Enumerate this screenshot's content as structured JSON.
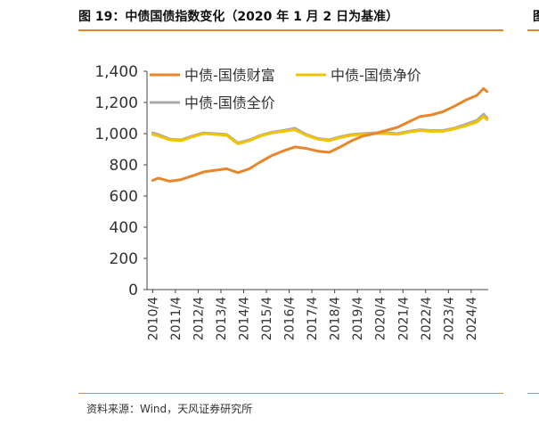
{
  "figure": {
    "title": "图 19：中债国债指数变化（2020 年 1 月 2 日为基准）",
    "source": "资料来源：Wind，天风证券研究所",
    "right_fragment": "图",
    "accent_color": "#E8862C"
  },
  "chart_data": {
    "type": "line",
    "title": "",
    "xlabel": "",
    "ylabel": "",
    "ylim": [
      0,
      1400
    ],
    "yticks": [
      "0",
      "200",
      "400",
      "600",
      "800",
      "1,000",
      "1,200",
      "1,400"
    ],
    "xticks": [
      "2010/4",
      "2011/4",
      "2012/4",
      "2013/4",
      "2014/4",
      "2015/4",
      "2016/4",
      "2017/4",
      "2018/4",
      "2019/4",
      "2020/4",
      "2021/4",
      "2022/4",
      "2023/4",
      "2024/4"
    ],
    "x": [
      2010.25,
      2010.5,
      2011.0,
      2011.5,
      2012.0,
      2012.5,
      2013.0,
      2013.5,
      2014.0,
      2014.5,
      2015.0,
      2015.5,
      2016.0,
      2016.5,
      2017.0,
      2017.5,
      2018.0,
      2018.5,
      2019.0,
      2019.5,
      2020.0,
      2020.5,
      2021.0,
      2021.5,
      2022.0,
      2022.5,
      2023.0,
      2023.5,
      2024.0,
      2024.5,
      2024.8,
      2024.95
    ],
    "grid": false,
    "legend_position": "top",
    "series": [
      {
        "name": "中债-国债财富",
        "color": "#E8862C",
        "values": [
          700,
          715,
          695,
          705,
          730,
          755,
          765,
          775,
          750,
          775,
          820,
          860,
          890,
          915,
          905,
          888,
          880,
          915,
          955,
          985,
          1000,
          1020,
          1040,
          1075,
          1110,
          1120,
          1140,
          1175,
          1215,
          1245,
          1290,
          1270
        ]
      },
      {
        "name": "中债-国债净价",
        "color": "#F2C300",
        "values": [
          995,
          985,
          960,
          955,
          980,
          1000,
          995,
          990,
          935,
          955,
          985,
          1005,
          1015,
          1025,
          990,
          965,
          955,
          975,
          990,
          995,
          1000,
          1000,
          995,
          1010,
          1020,
          1015,
          1015,
          1030,
          1050,
          1075,
          1110,
          1090
        ]
      },
      {
        "name": "中债-国债全价",
        "color": "#AAAAAA",
        "values": [
          1005,
          995,
          965,
          960,
          985,
          1005,
          1000,
          995,
          940,
          960,
          990,
          1010,
          1020,
          1035,
          995,
          970,
          960,
          980,
          995,
          1000,
          1005,
          1005,
          1000,
          1015,
          1025,
          1020,
          1020,
          1035,
          1060,
          1085,
          1125,
          1100
        ]
      }
    ]
  }
}
